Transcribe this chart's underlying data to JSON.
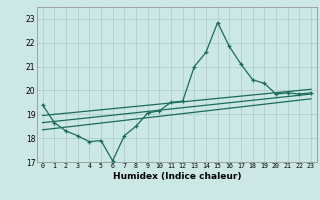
{
  "title": "",
  "xlabel": "Humidex (Indice chaleur)",
  "background_color": "#cce8e4",
  "grid_color": "#b0d0cc",
  "line_color": "#1a6b5a",
  "xlim": [
    -0.5,
    23.5
  ],
  "ylim": [
    17,
    23.5
  ],
  "yticks": [
    17,
    18,
    19,
    20,
    21,
    22,
    23
  ],
  "xticks": [
    0,
    1,
    2,
    3,
    4,
    5,
    6,
    7,
    8,
    9,
    10,
    11,
    12,
    13,
    14,
    15,
    16,
    17,
    18,
    19,
    20,
    21,
    22,
    23
  ],
  "main_line_x": [
    0,
    1,
    2,
    3,
    4,
    5,
    6,
    7,
    8,
    9,
    10,
    11,
    12,
    13,
    14,
    15,
    16,
    17,
    18,
    19,
    20,
    21,
    22,
    23
  ],
  "main_line_y": [
    19.4,
    18.65,
    18.3,
    18.1,
    17.85,
    17.9,
    17.05,
    18.1,
    18.5,
    19.05,
    19.15,
    19.5,
    19.55,
    21.0,
    21.6,
    22.85,
    21.85,
    21.1,
    20.45,
    20.3,
    19.85,
    19.9,
    19.85,
    19.9
  ],
  "trend_line1_x": [
    0,
    23
  ],
  "trend_line1_y": [
    18.95,
    20.05
  ],
  "trend_line2_x": [
    0,
    23
  ],
  "trend_line2_y": [
    18.65,
    19.85
  ],
  "trend_line3_x": [
    0,
    23
  ],
  "trend_line3_y": [
    18.35,
    19.65
  ]
}
